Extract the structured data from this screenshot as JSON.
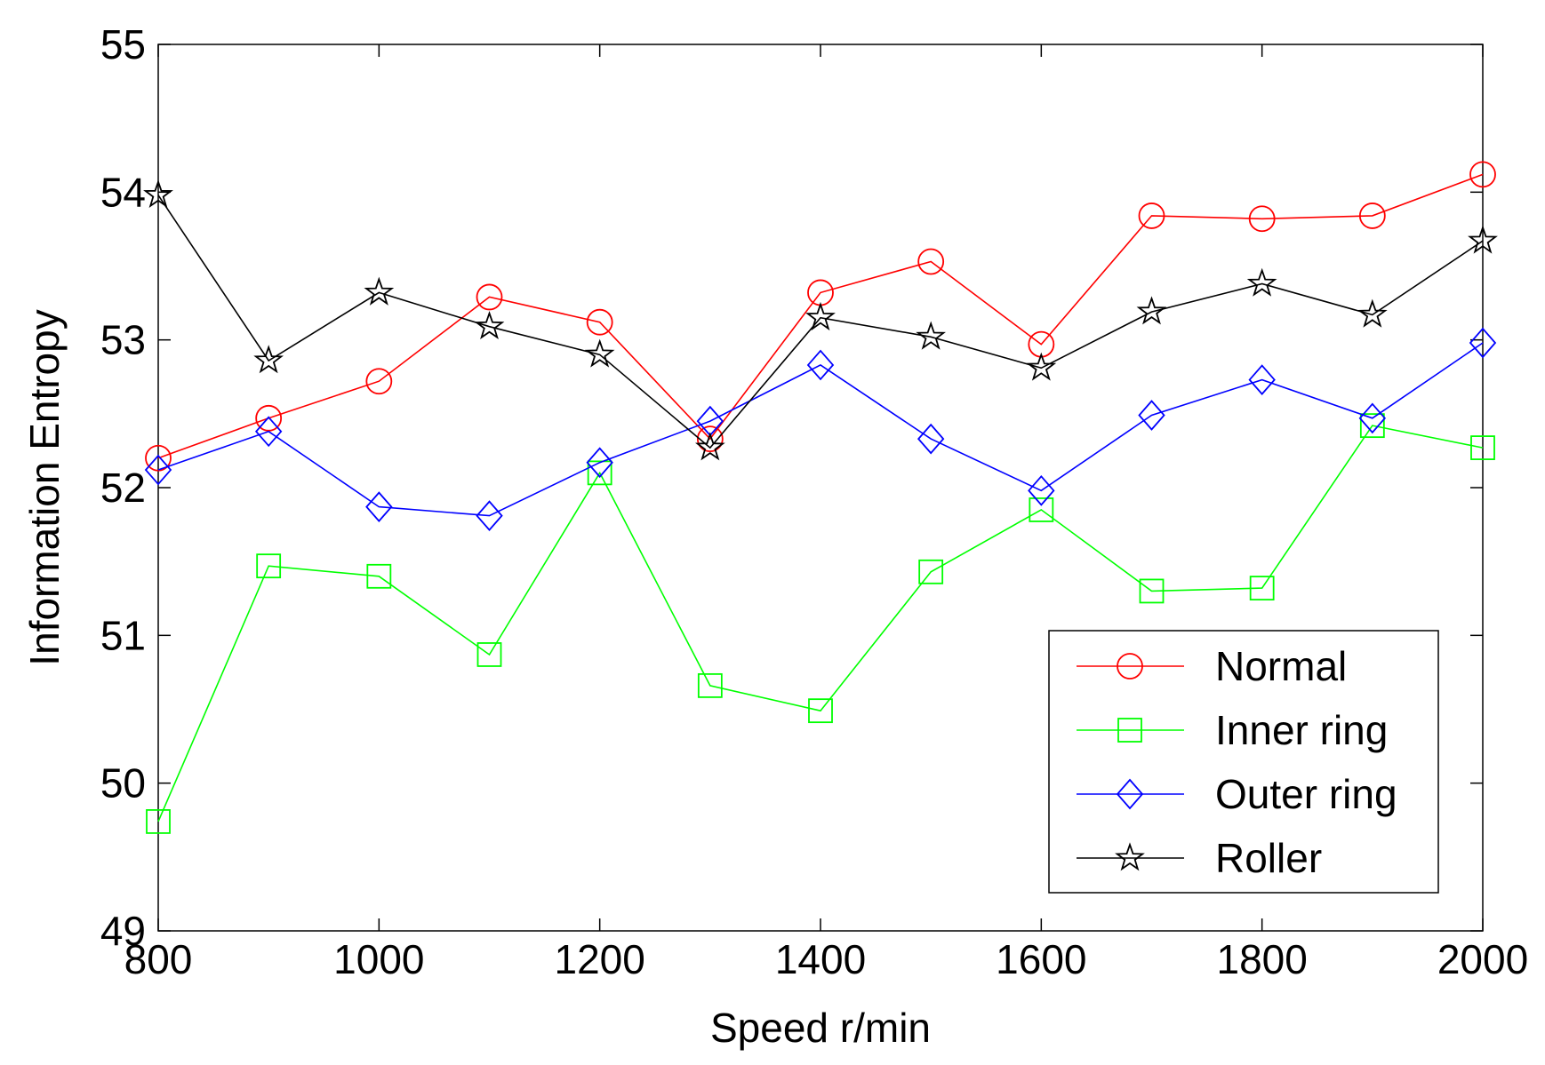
{
  "chart_data": {
    "type": "line",
    "title": "",
    "xlabel": "Speed r/min",
    "ylabel": "Information Entropy",
    "xlim": [
      800,
      2000
    ],
    "ylim": [
      49,
      55
    ],
    "xticks": [
      800,
      1000,
      1200,
      1400,
      1600,
      1800,
      2000
    ],
    "yticks": [
      49,
      50,
      51,
      52,
      53,
      54,
      55
    ],
    "grid": false,
    "legend_position": "bottom-right",
    "x": [
      800,
      900,
      1000,
      1100,
      1200,
      1300,
      1400,
      1500,
      1600,
      1700,
      1800,
      1900,
      2000
    ],
    "series": [
      {
        "name": "Normal",
        "color": "#ff0000",
        "marker": "circle",
        "values": [
          52.2,
          52.47,
          52.72,
          53.29,
          53.12,
          52.33,
          53.32,
          53.53,
          52.97,
          53.84,
          53.82,
          53.84,
          54.12
        ]
      },
      {
        "name": "Inner ring",
        "color": "#00ff00",
        "marker": "square",
        "values": [
          49.74,
          51.47,
          51.4,
          50.87,
          52.1,
          50.66,
          50.49,
          51.43,
          51.85,
          51.3,
          51.32,
          52.42,
          52.27
        ]
      },
      {
        "name": "Outer ring",
        "color": "#0000ff",
        "marker": "diamond",
        "values": [
          52.12,
          52.38,
          51.87,
          51.81,
          52.17,
          52.45,
          52.83,
          52.33,
          51.98,
          52.49,
          52.73,
          52.47,
          52.98
        ]
      },
      {
        "name": "Roller",
        "color": "#000000",
        "marker": "star",
        "values": [
          53.98,
          52.86,
          53.32,
          53.09,
          52.9,
          52.27,
          53.15,
          53.02,
          52.81,
          53.19,
          53.38,
          53.17,
          53.67
        ]
      }
    ]
  }
}
